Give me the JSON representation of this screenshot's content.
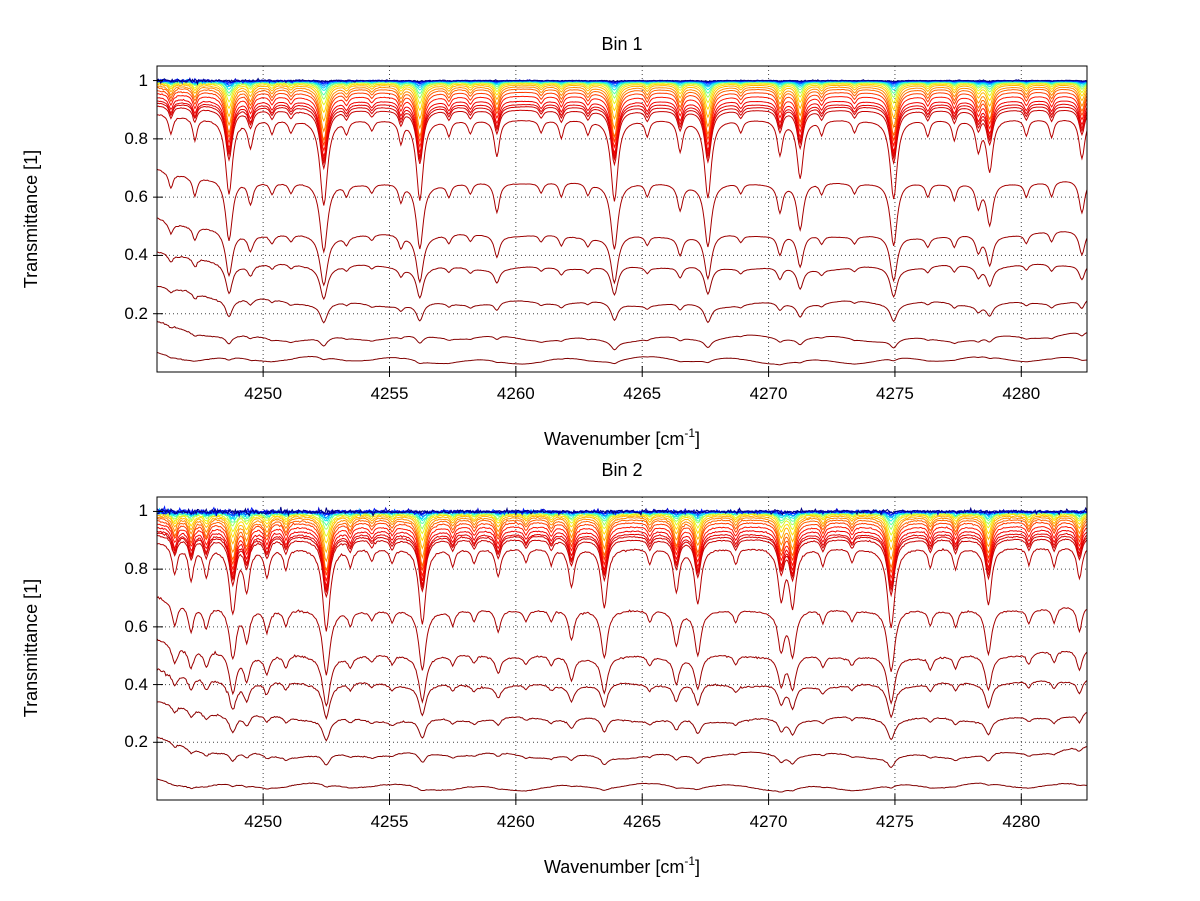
{
  "figure": {
    "background": "#ffffff",
    "axis_color": "#000000",
    "grid_color": "#444444",
    "text_color": "#000000"
  },
  "chart_data": [
    {
      "type": "line",
      "title": "Bin 1",
      "ylabel": "Transmittance [1]",
      "xlabel_prefix": "Wavenumber [cm",
      "xlabel_sup": "-1",
      "xlabel_suffix": "]",
      "xlim": [
        4245.8,
        4282.6
      ],
      "ylim": [
        0,
        1.05
      ],
      "xticks": [
        4250,
        4255,
        4260,
        4265,
        4270,
        4275,
        4280
      ],
      "yticks": [
        0.2,
        0.4,
        0.6,
        0.8,
        1
      ],
      "grid": true,
      "legend": null,
      "continuum": {
        "left_lift": 0.16,
        "left_decay": 2.2,
        "right_lift": 0.05,
        "right_decay": 1.8
      },
      "noise_profile": {
        "floor": 0.2,
        "decay": 5
      },
      "absorption_lines": [
        [
          4246.35,
          0.18,
          0.1
        ],
        [
          4247.3,
          0.22,
          0.1
        ],
        [
          4248.65,
          0.85,
          0.15
        ],
        [
          4249.5,
          0.28,
          0.12
        ],
        [
          4250.35,
          0.14,
          0.1
        ],
        [
          4251.1,
          0.12,
          0.1
        ],
        [
          4252.4,
          1.0,
          0.16
        ],
        [
          4253.3,
          0.13,
          0.1
        ],
        [
          4254.3,
          0.1,
          0.1
        ],
        [
          4255.45,
          0.22,
          0.1
        ],
        [
          4256.2,
          0.92,
          0.15
        ],
        [
          4257.35,
          0.15,
          0.1
        ],
        [
          4258.2,
          0.13,
          0.1
        ],
        [
          4259.25,
          0.38,
          0.12
        ],
        [
          4261.0,
          0.12,
          0.1
        ],
        [
          4261.8,
          0.18,
          0.1
        ],
        [
          4262.85,
          0.14,
          0.1
        ],
        [
          4263.9,
          0.93,
          0.15
        ],
        [
          4265.2,
          0.16,
          0.1
        ],
        [
          4266.5,
          0.32,
          0.12
        ],
        [
          4267.6,
          0.88,
          0.15
        ],
        [
          4268.9,
          0.12,
          0.1
        ],
        [
          4270.45,
          0.35,
          0.12
        ],
        [
          4271.25,
          0.62,
          0.14
        ],
        [
          4272.1,
          0.14,
          0.1
        ],
        [
          4273.4,
          0.12,
          0.1
        ],
        [
          4274.95,
          0.9,
          0.15
        ],
        [
          4276.3,
          0.16,
          0.1
        ],
        [
          4277.35,
          0.2,
          0.1
        ],
        [
          4278.3,
          0.3,
          0.12
        ],
        [
          4278.75,
          0.55,
          0.14
        ],
        [
          4280.2,
          0.16,
          0.1
        ],
        [
          4281.2,
          0.18,
          0.1
        ],
        [
          4282.4,
          0.42,
          0.13
        ]
      ],
      "series": [
        {
          "color": "#000082",
          "baseline": 1.0,
          "line_depth": 0.003,
          "noise_amp": 0.006
        },
        {
          "color": "#0000D0",
          "baseline": 0.9998,
          "line_depth": 0.005,
          "noise_amp": 0.005
        },
        {
          "color": "#0018FF",
          "baseline": 0.9995,
          "line_depth": 0.008,
          "noise_amp": 0.005
        },
        {
          "color": "#0050FF",
          "baseline": 0.999,
          "line_depth": 0.012,
          "noise_amp": 0.004
        },
        {
          "color": "#0090FF",
          "baseline": 0.9985,
          "line_depth": 0.017,
          "noise_amp": 0.004
        },
        {
          "color": "#00C8FF",
          "baseline": 0.998,
          "line_depth": 0.023,
          "noise_amp": 0.004
        },
        {
          "color": "#10F0E8",
          "baseline": 0.997,
          "line_depth": 0.032,
          "noise_amp": 0.003
        },
        {
          "color": "#58FFA8",
          "baseline": 0.996,
          "line_depth": 0.045,
          "noise_amp": 0.003
        },
        {
          "color": "#A0FF60",
          "baseline": 0.995,
          "line_depth": 0.06,
          "noise_amp": 0.003
        },
        {
          "color": "#E0F520",
          "baseline": 0.993,
          "line_depth": 0.08,
          "noise_amp": 0.003
        },
        {
          "color": "#FFDC00",
          "baseline": 0.99,
          "line_depth": 0.105,
          "noise_amp": 0.002
        },
        {
          "color": "#FFB400",
          "baseline": 0.986,
          "line_depth": 0.135,
          "noise_amp": 0.002
        },
        {
          "color": "#FF8C00",
          "baseline": 0.98,
          "line_depth": 0.17,
          "noise_amp": 0.002
        },
        {
          "color": "#FF6400",
          "baseline": 0.973,
          "line_depth": 0.2,
          "noise_amp": 0.002
        },
        {
          "color": "#FF3C00",
          "baseline": 0.962,
          "line_depth": 0.21,
          "noise_amp": 0.0015
        },
        {
          "color": "#FF1400",
          "baseline": 0.948,
          "line_depth": 0.22,
          "noise_amp": 0.0015
        },
        {
          "color": "#F00000",
          "baseline": 0.932,
          "line_depth": 0.23,
          "noise_amp": 0.0015
        },
        {
          "color": "#E20000",
          "baseline": 0.921,
          "line_depth": 0.235,
          "noise_amp": 0.0015
        },
        {
          "color": "#D40000",
          "baseline": 0.912,
          "line_depth": 0.24,
          "noise_amp": 0.0015
        },
        {
          "color": "#C60000",
          "baseline": 0.9,
          "line_depth": 0.25,
          "noise_amp": 0.0015
        },
        {
          "color": "#B40000",
          "baseline": 0.868,
          "line_depth": 0.42,
          "noise_amp": 0.002
        },
        {
          "color": "#A60000",
          "baseline": 0.65,
          "line_depth": 0.46,
          "noise_amp": 0.002
        },
        {
          "color": "#9C0000",
          "baseline": 0.47,
          "line_depth": 0.45,
          "noise_amp": 0.002
        },
        {
          "color": "#940000",
          "baseline": 0.36,
          "line_depth": 0.36,
          "noise_amp": 0.002
        },
        {
          "color": "#8C0000",
          "baseline": 0.235,
          "line_depth": 0.32,
          "noise_amp": 0.002
        },
        {
          "color": "#860000",
          "baseline": 0.115,
          "line_depth": 0.3,
          "noise_amp": 0.0015
        },
        {
          "color": "#800000",
          "baseline": 0.04,
          "line_depth": 0.28,
          "noise_amp": 0.001
        }
      ]
    },
    {
      "type": "line",
      "title": "Bin 2",
      "ylabel": "Transmittance [1]",
      "xlabel_prefix": "Wavenumber [cm",
      "xlabel_sup": "-1",
      "xlabel_suffix": "]",
      "xlim": [
        4245.8,
        4282.6
      ],
      "ylim": [
        0,
        1.05
      ],
      "xticks": [
        4250,
        4255,
        4260,
        4265,
        4270,
        4275,
        4280
      ],
      "yticks": [
        0.2,
        0.4,
        0.6,
        0.8,
        1
      ],
      "grid": true,
      "legend": null,
      "continuum": {
        "left_lift": 0.16,
        "left_decay": 2.2,
        "right_lift": 0.07,
        "right_decay": 1.8
      },
      "noise_profile": {
        "floor": 0.45,
        "decay": 6
      },
      "absorption_lines": [
        [
          4246.5,
          0.3,
          0.12
        ],
        [
          4247.15,
          0.35,
          0.12
        ],
        [
          4247.75,
          0.3,
          0.12
        ],
        [
          4248.8,
          0.75,
          0.15
        ],
        [
          4249.35,
          0.45,
          0.13
        ],
        [
          4250.15,
          0.3,
          0.12
        ],
        [
          4250.9,
          0.22,
          0.1
        ],
        [
          4252.5,
          1.0,
          0.16
        ],
        [
          4253.45,
          0.18,
          0.1
        ],
        [
          4254.3,
          0.12,
          0.1
        ],
        [
          4255.1,
          0.15,
          0.1
        ],
        [
          4256.3,
          0.9,
          0.15
        ],
        [
          4257.5,
          0.18,
          0.1
        ],
        [
          4258.35,
          0.15,
          0.1
        ],
        [
          4259.3,
          0.3,
          0.12
        ],
        [
          4260.4,
          0.14,
          0.1
        ],
        [
          4261.4,
          0.16,
          0.1
        ],
        [
          4262.2,
          0.42,
          0.13
        ],
        [
          4263.5,
          0.68,
          0.14
        ],
        [
          4265.3,
          0.16,
          0.1
        ],
        [
          4266.35,
          0.48,
          0.13
        ],
        [
          4267.2,
          0.62,
          0.14
        ],
        [
          4268.7,
          0.16,
          0.1
        ],
        [
          4270.5,
          0.55,
          0.14
        ],
        [
          4270.95,
          0.65,
          0.14
        ],
        [
          4272.15,
          0.18,
          0.1
        ],
        [
          4273.3,
          0.14,
          0.1
        ],
        [
          4274.85,
          0.95,
          0.16
        ],
        [
          4276.4,
          0.2,
          0.1
        ],
        [
          4277.4,
          0.22,
          0.1
        ],
        [
          4278.7,
          0.65,
          0.14
        ],
        [
          4280.3,
          0.18,
          0.1
        ],
        [
          4281.3,
          0.2,
          0.1
        ],
        [
          4282.3,
          0.35,
          0.12
        ]
      ],
      "series": [
        {
          "color": "#000082",
          "baseline": 1.0,
          "line_depth": 0.003,
          "noise_amp": 0.01
        },
        {
          "color": "#0000D0",
          "baseline": 0.9998,
          "line_depth": 0.005,
          "noise_amp": 0.009
        },
        {
          "color": "#0018FF",
          "baseline": 0.9995,
          "line_depth": 0.008,
          "noise_amp": 0.008
        },
        {
          "color": "#0050FF",
          "baseline": 0.999,
          "line_depth": 0.012,
          "noise_amp": 0.007
        },
        {
          "color": "#0090FF",
          "baseline": 0.9985,
          "line_depth": 0.017,
          "noise_amp": 0.007
        },
        {
          "color": "#00C8FF",
          "baseline": 0.998,
          "line_depth": 0.023,
          "noise_amp": 0.006
        },
        {
          "color": "#10F0E8",
          "baseline": 0.997,
          "line_depth": 0.032,
          "noise_amp": 0.005
        },
        {
          "color": "#58FFA8",
          "baseline": 0.996,
          "line_depth": 0.045,
          "noise_amp": 0.005
        },
        {
          "color": "#A0FF60",
          "baseline": 0.995,
          "line_depth": 0.06,
          "noise_amp": 0.005
        },
        {
          "color": "#E0F520",
          "baseline": 0.993,
          "line_depth": 0.08,
          "noise_amp": 0.004
        },
        {
          "color": "#FFDC00",
          "baseline": 0.99,
          "line_depth": 0.105,
          "noise_amp": 0.003
        },
        {
          "color": "#FFB400",
          "baseline": 0.986,
          "line_depth": 0.135,
          "noise_amp": 0.003
        },
        {
          "color": "#FF8C00",
          "baseline": 0.981,
          "line_depth": 0.17,
          "noise_amp": 0.003
        },
        {
          "color": "#FF6400",
          "baseline": 0.974,
          "line_depth": 0.2,
          "noise_amp": 0.003
        },
        {
          "color": "#FF3C00",
          "baseline": 0.964,
          "line_depth": 0.21,
          "noise_amp": 0.003
        },
        {
          "color": "#FF1400",
          "baseline": 0.95,
          "line_depth": 0.22,
          "noise_amp": 0.003
        },
        {
          "color": "#F00000",
          "baseline": 0.936,
          "line_depth": 0.23,
          "noise_amp": 0.003
        },
        {
          "color": "#E20000",
          "baseline": 0.924,
          "line_depth": 0.235,
          "noise_amp": 0.003
        },
        {
          "color": "#D40000",
          "baseline": 0.916,
          "line_depth": 0.24,
          "noise_amp": 0.003
        },
        {
          "color": "#C60000",
          "baseline": 0.905,
          "line_depth": 0.25,
          "noise_amp": 0.003
        },
        {
          "color": "#B40000",
          "baseline": 0.875,
          "line_depth": 0.4,
          "noise_amp": 0.004
        },
        {
          "color": "#A60000",
          "baseline": 0.66,
          "line_depth": 0.42,
          "noise_amp": 0.004
        },
        {
          "color": "#9C0000",
          "baseline": 0.5,
          "line_depth": 0.42,
          "noise_amp": 0.004
        },
        {
          "color": "#940000",
          "baseline": 0.4,
          "line_depth": 0.34,
          "noise_amp": 0.004
        },
        {
          "color": "#8C0000",
          "baseline": 0.28,
          "line_depth": 0.3,
          "noise_amp": 0.003
        },
        {
          "color": "#860000",
          "baseline": 0.155,
          "line_depth": 0.28,
          "noise_amp": 0.002
        },
        {
          "color": "#800000",
          "baseline": 0.045,
          "line_depth": 0.26,
          "noise_amp": 0.0015
        }
      ]
    }
  ]
}
